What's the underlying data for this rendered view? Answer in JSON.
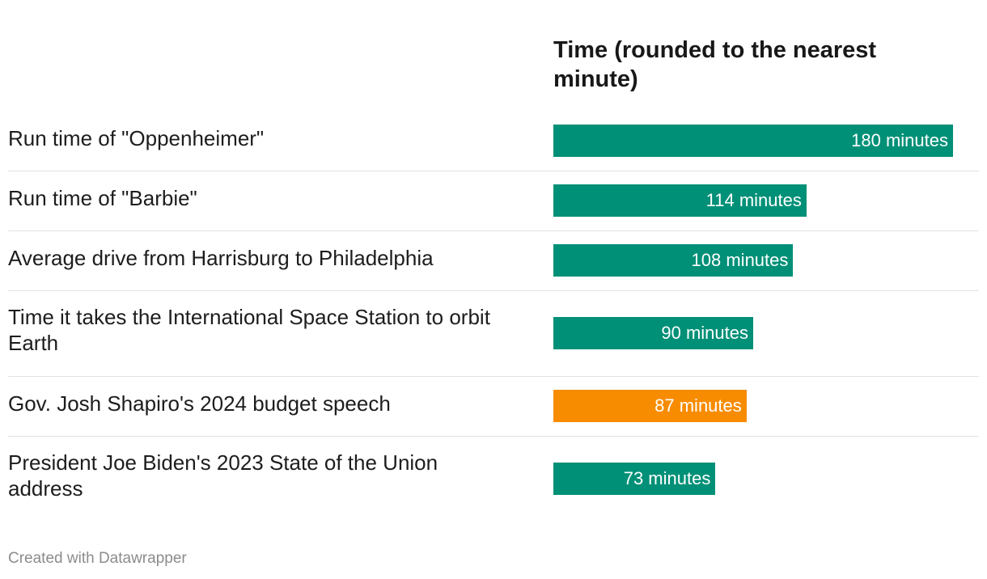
{
  "chart_data": {
    "type": "bar",
    "orientation": "horizontal",
    "column_header": "Time (rounded to the nearest minute)",
    "categories": [
      "Run time of \"Oppenheimer\"",
      "Run time of \"Barbie\"",
      "Average drive from Harrisburg to Philadelphia",
      "Time it takes the International Space Station to orbit Earth",
      "Gov. Josh Shapiro's 2024 budget speech",
      "President Joe Biden's 2023 State of the Union address"
    ],
    "values": [
      180,
      114,
      108,
      90,
      87,
      73
    ],
    "value_labels": [
      "180 minutes",
      "114 minutes",
      "108 minutes",
      "90 minutes",
      "87 minutes",
      "73 minutes"
    ],
    "bar_colors": [
      "#009077",
      "#009077",
      "#009077",
      "#009077",
      "#f78c00",
      "#009077"
    ],
    "highlighted_category": "Gov. Josh Shapiro's 2024 budget speech",
    "xlim": [
      0,
      180
    ],
    "grid": false,
    "legend": "none"
  },
  "footer": {
    "credit": "Created with Datawrapper"
  },
  "colors": {
    "default_bar": "#009077",
    "highlight_bar": "#f78c00",
    "value_text": "#ffffff",
    "label_text": "#1d1d1d",
    "separator": "#e2e2e2",
    "credit_text": "#8c8c8c"
  }
}
